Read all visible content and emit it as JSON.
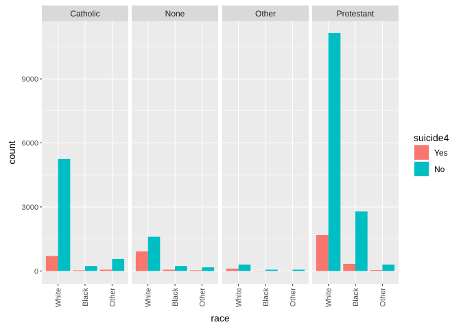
{
  "chart_data": {
    "type": "bar",
    "facet_by": "religion",
    "panels": [
      "Catholic",
      "None",
      "Other",
      "Protestant"
    ],
    "categories": [
      "White",
      "Black",
      "Other"
    ],
    "xlabel": "race",
    "ylabel": "count",
    "ylim": [
      -600,
      11700
    ],
    "yticks": [
      0,
      3000,
      6000,
      9000
    ],
    "legend": {
      "title": "suicide4",
      "position": "right",
      "entries": [
        {
          "name": "Yes",
          "color": "#F8766D"
        },
        {
          "name": "No",
          "color": "#00BFC4"
        }
      ]
    },
    "series": [
      {
        "name": "Yes",
        "color": "#F8766D",
        "values": {
          "Catholic": [
            700,
            30,
            60
          ],
          "None": [
            920,
            60,
            30
          ],
          "Other": [
            110,
            10,
            5
          ],
          "Protestant": [
            1680,
            330,
            40
          ]
        }
      },
      {
        "name": "No",
        "color": "#00BFC4",
        "values": {
          "Catholic": [
            5250,
            230,
            560
          ],
          "None": [
            1600,
            230,
            170
          ],
          "Other": [
            300,
            60,
            60
          ],
          "Protestant": [
            11150,
            2790,
            300
          ]
        }
      }
    ],
    "grid": true
  }
}
